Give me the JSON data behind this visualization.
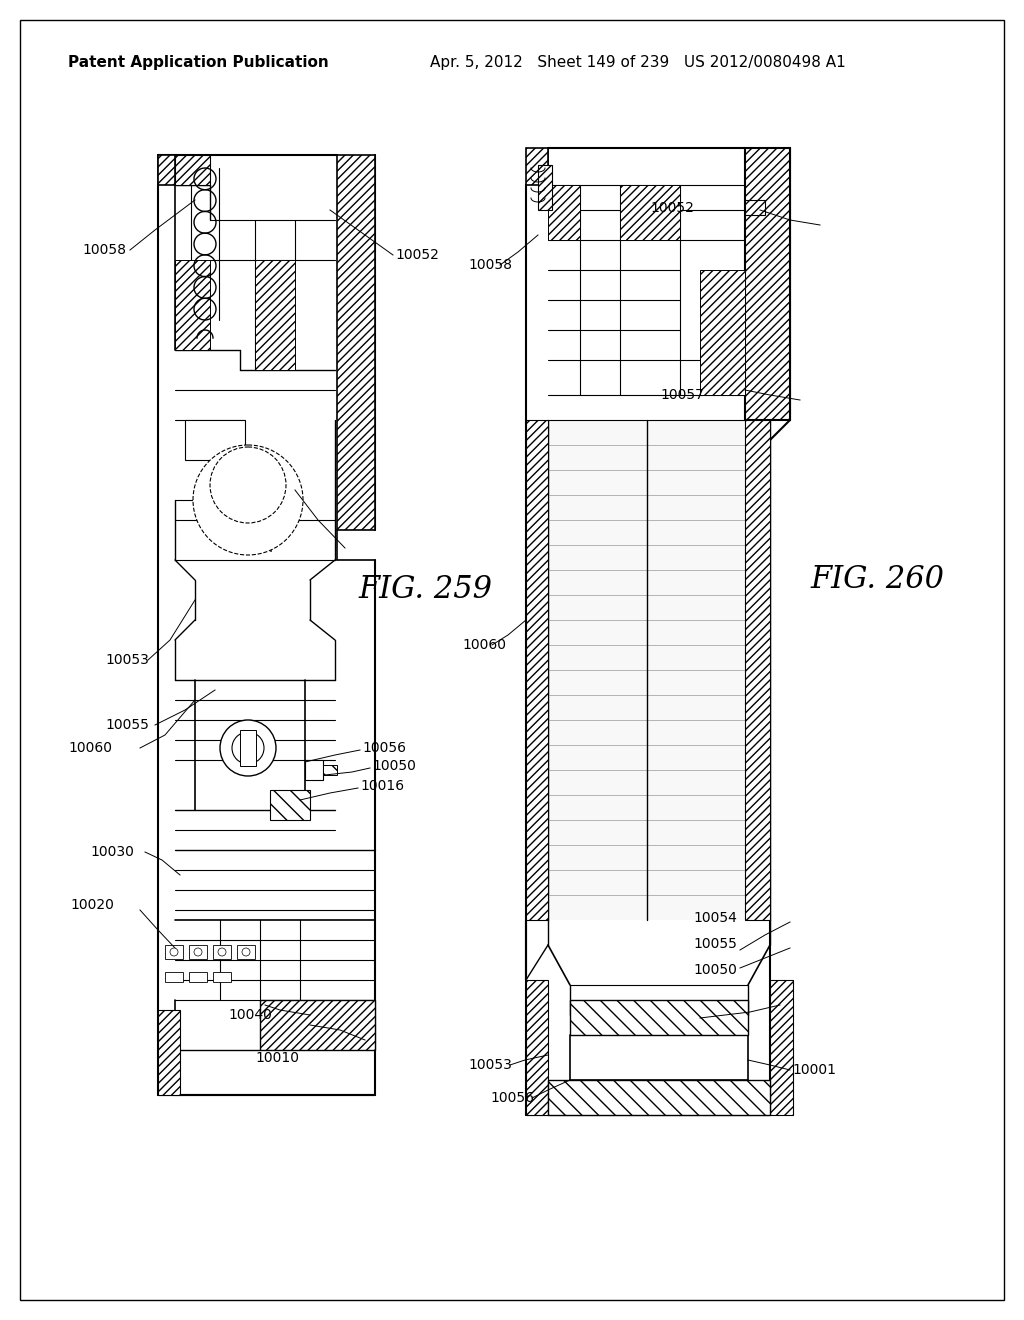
{
  "background_color": "#ffffff",
  "header_left": "Patent Application Publication",
  "header_center": "Apr. 5, 2012   Sheet 149 of 239   US 2012/0080498 A1",
  "fig259_label": "FIG. 259",
  "fig260_label": "FIG. 260",
  "line_color": "#000000",
  "text_color": "#000000",
  "font_size_header": 11,
  "font_size_label": 22,
  "font_size_ref": 11
}
